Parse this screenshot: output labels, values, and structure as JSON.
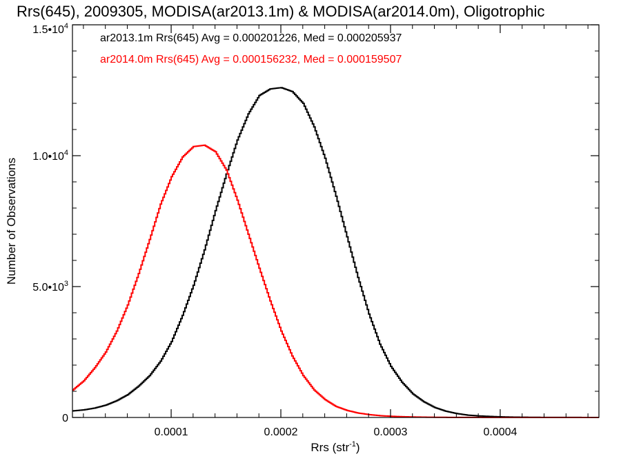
{
  "chart_data": {
    "type": "line",
    "step": true,
    "title": "Rrs(645), 2009305, MODISA(ar2013.1m) & MODISA(ar2014.0m), Oligotrophic",
    "xlabel": {
      "text": "Rrs (str",
      "sup": "-1",
      "suffix": ")"
    },
    "ylabel": "Number of Observations",
    "xlim": [
      1e-05,
      0.00049
    ],
    "ylim": [
      0,
      15000
    ],
    "grid": false,
    "x_ticks": [
      {
        "value": 0.0001,
        "label": "0.0001"
      },
      {
        "value": 0.0002,
        "label": "0.0002"
      },
      {
        "value": 0.0003,
        "label": "0.0003"
      },
      {
        "value": 0.0004,
        "label": "0.0004"
      }
    ],
    "y_ticks": [
      {
        "value": 0,
        "label": "0",
        "sup": ""
      },
      {
        "value": 5000,
        "label": "5.0•10",
        "sup": "3"
      },
      {
        "value": 10000,
        "label": "1.0•10",
        "sup": "4"
      },
      {
        "value": 15000,
        "label": "1.5•10",
        "sup": "4"
      }
    ],
    "annotations": [
      {
        "text": "ar2013.1m Rrs(645) Avg = 0.000201226, Med = 0.000205937",
        "color": "#000000"
      },
      {
        "text": "ar2014.0m Rrs(645) Avg = 0.000156232, Med = 0.000159507",
        "color": "#ff0000"
      }
    ],
    "x": [
      1e-05,
      2e-05,
      3e-05,
      4e-05,
      5e-05,
      6e-05,
      7e-05,
      8e-05,
      9e-05,
      0.0001,
      0.00011,
      0.00012,
      0.00013,
      0.00014,
      0.00015,
      0.00016,
      0.00017,
      0.00018,
      0.00019,
      0.0002,
      0.00021,
      0.00022,
      0.00023,
      0.00024,
      0.00025,
      0.00026,
      0.00027,
      0.00028,
      0.00029,
      0.0003,
      0.00031,
      0.00032,
      0.00033,
      0.00034,
      0.00035,
      0.00036,
      0.00037,
      0.00038,
      0.00039,
      0.0004,
      0.00041,
      0.00042,
      0.00043,
      0.00044,
      0.00045,
      0.00046,
      0.00047,
      0.00048,
      0.00049
    ],
    "series": [
      {
        "name": "ar2013.1m",
        "color": "#000000",
        "values": [
          250,
          290,
          360,
          470,
          640,
          870,
          1200,
          1600,
          2150,
          2900,
          3900,
          5050,
          6400,
          7900,
          9300,
          10600,
          11600,
          12300,
          12550,
          12600,
          12450,
          12000,
          11100,
          9900,
          8450,
          6900,
          5350,
          3950,
          2800,
          1950,
          1350,
          900,
          600,
          380,
          240,
          150,
          90,
          60,
          40,
          25,
          15,
          10,
          6,
          4,
          3,
          2,
          2,
          1,
          1
        ]
      },
      {
        "name": "ar2014.0m",
        "color": "#ff0000",
        "values": [
          1050,
          1400,
          1900,
          2500,
          3300,
          4300,
          5500,
          6800,
          8150,
          9200,
          9950,
          10350,
          10400,
          10150,
          9450,
          8300,
          7000,
          5700,
          4450,
          3300,
          2350,
          1600,
          1050,
          680,
          420,
          270,
          170,
          110,
          70,
          45,
          30,
          20,
          12,
          8,
          5,
          3,
          2,
          2,
          1,
          1,
          1,
          1,
          0,
          0,
          0,
          0,
          0,
          0,
          0
        ]
      }
    ]
  }
}
